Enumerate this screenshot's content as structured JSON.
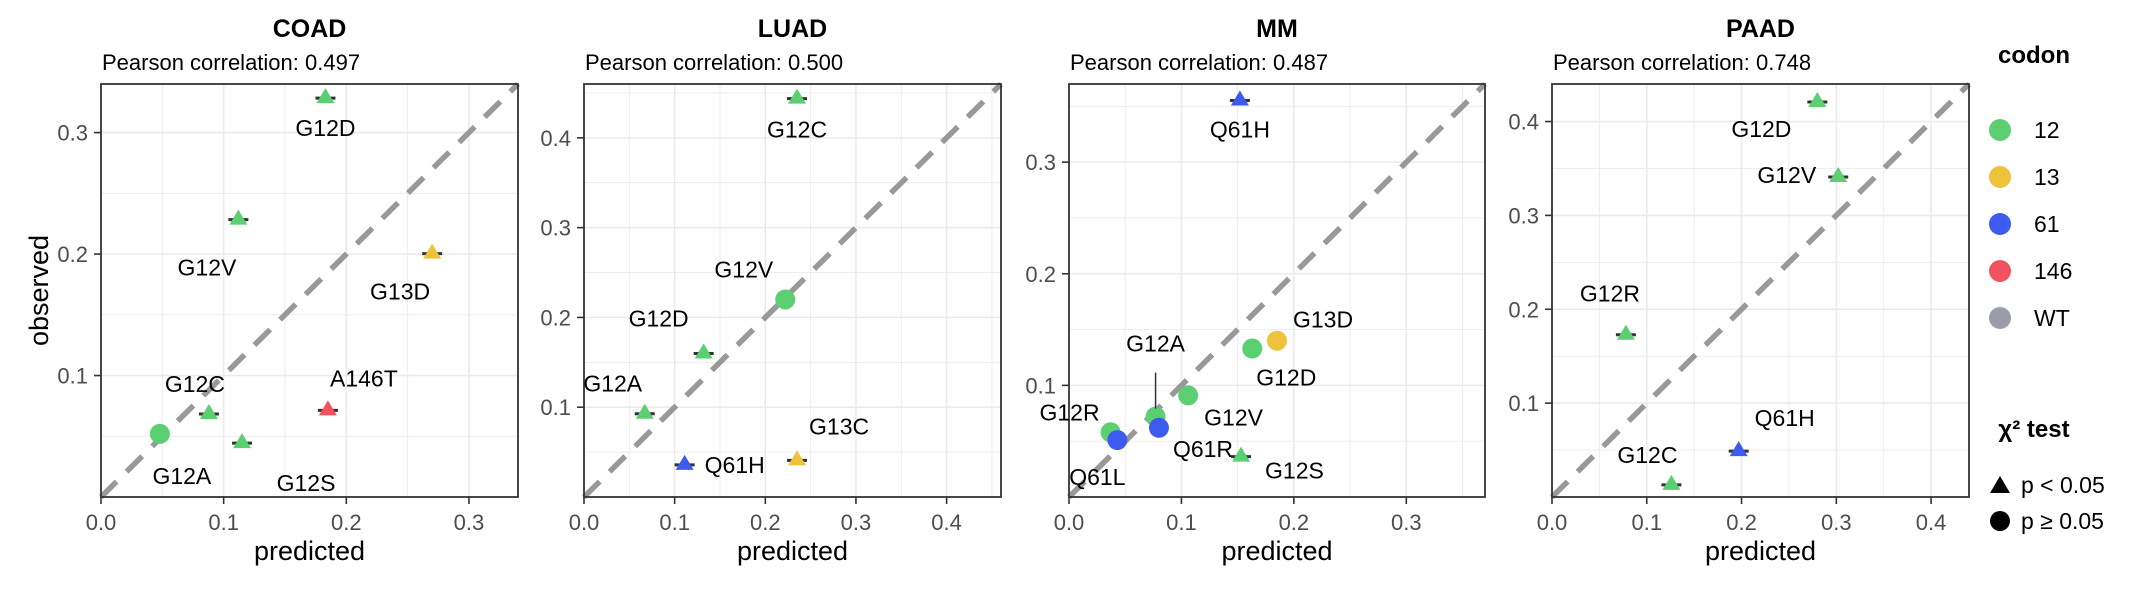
{
  "colors": {
    "12": "#5BCF72",
    "13": "#EEC23A",
    "61": "#3D5BEF",
    "146": "#F0525F",
    "WT": "#9A9CA8",
    "diagonal": "#999999",
    "panel_border": "#333333",
    "grid": "#EBEBEB"
  },
  "chart_data": [
    {
      "type": "scatter",
      "title": "COAD",
      "subtitle": "Pearson correlation: 0.497",
      "xlabel": "predicted",
      "ylabel": "observed",
      "xlim": [
        0,
        0.34
      ],
      "ylim": [
        0,
        0.34
      ],
      "xticks": [
        "0.0",
        "0.1",
        "0.2",
        "0.3"
      ],
      "yticks": [
        "0.1",
        "0.2",
        "0.3"
      ],
      "diagonal": "y = x dashed",
      "points": [
        {
          "label": "G12D",
          "x": 0.183,
          "y": 0.33,
          "codon": "12",
          "shape": "triangle"
        },
        {
          "label": "G12V",
          "x": 0.112,
          "y": 0.23,
          "codon": "12",
          "shape": "triangle"
        },
        {
          "label": "G13D",
          "x": 0.27,
          "y": 0.202,
          "codon": "13",
          "shape": "triangle"
        },
        {
          "label": "A146T",
          "x": 0.185,
          "y": 0.073,
          "codon": "146",
          "shape": "triangle"
        },
        {
          "label": "G12C",
          "x": 0.088,
          "y": 0.07,
          "codon": "12",
          "shape": "triangle"
        },
        {
          "label": "G12S",
          "x": 0.115,
          "y": 0.046,
          "codon": "12",
          "shape": "triangle"
        },
        {
          "label": "G12A",
          "x": 0.048,
          "y": 0.052,
          "codon": "12",
          "shape": "circle"
        }
      ]
    },
    {
      "type": "scatter",
      "title": "LUAD",
      "subtitle": "Pearson correlation: 0.500",
      "xlabel": "predicted",
      "ylabel": "",
      "xlim": [
        0,
        0.46
      ],
      "ylim": [
        0,
        0.46
      ],
      "xticks": [
        "0.0",
        "0.1",
        "0.2",
        "0.3",
        "0.4"
      ],
      "yticks": [
        "0.1",
        "0.2",
        "0.3",
        "0.4"
      ],
      "diagonal": "y = x dashed",
      "points": [
        {
          "label": "G12C",
          "x": 0.235,
          "y": 0.446,
          "codon": "12",
          "shape": "triangle"
        },
        {
          "label": "G12V",
          "x": 0.222,
          "y": 0.22,
          "codon": "12",
          "shape": "circle"
        },
        {
          "label": "G12D",
          "x": 0.132,
          "y": 0.162,
          "codon": "12",
          "shape": "triangle"
        },
        {
          "label": "G12A",
          "x": 0.067,
          "y": 0.095,
          "codon": "12",
          "shape": "triangle"
        },
        {
          "label": "G13C",
          "x": 0.235,
          "y": 0.043,
          "codon": "13",
          "shape": "triangle"
        },
        {
          "label": "Q61H",
          "x": 0.111,
          "y": 0.038,
          "codon": "61",
          "shape": "triangle"
        }
      ]
    },
    {
      "type": "scatter",
      "title": "MM",
      "subtitle": "Pearson correlation: 0.487",
      "xlabel": "predicted",
      "ylabel": "",
      "xlim": [
        0,
        0.37
      ],
      "ylim": [
        0,
        0.37
      ],
      "xticks": [
        "0.0",
        "0.1",
        "0.2",
        "0.3"
      ],
      "yticks": [
        "0.1",
        "0.2",
        "0.3"
      ],
      "diagonal": "y = x dashed",
      "points": [
        {
          "label": "Q61H",
          "x": 0.152,
          "y": 0.357,
          "codon": "61",
          "shape": "triangle"
        },
        {
          "label": "G13D",
          "x": 0.185,
          "y": 0.14,
          "codon": "13",
          "shape": "circle"
        },
        {
          "label": "G12D",
          "x": 0.163,
          "y": 0.133,
          "codon": "12",
          "shape": "circle"
        },
        {
          "label": "G12V",
          "x": 0.106,
          "y": 0.091,
          "codon": "12",
          "shape": "circle"
        },
        {
          "label": "G12A",
          "x": 0.077,
          "y": 0.072,
          "codon": "12",
          "shape": "circle"
        },
        {
          "label": "G12R",
          "x": 0.037,
          "y": 0.058,
          "codon": "12",
          "shape": "circle"
        },
        {
          "label": "Q61R",
          "x": 0.08,
          "y": 0.062,
          "codon": "61",
          "shape": "circle"
        },
        {
          "label": "Q61L",
          "x": 0.043,
          "y": 0.051,
          "codon": "61",
          "shape": "circle"
        },
        {
          "label": "G12S",
          "x": 0.153,
          "y": 0.038,
          "codon": "12",
          "shape": "triangle"
        }
      ]
    },
    {
      "type": "scatter",
      "title": "PAAD",
      "subtitle": "Pearson correlation: 0.748",
      "xlabel": "predicted",
      "ylabel": "",
      "xlim": [
        0,
        0.44
      ],
      "ylim": [
        0,
        0.44
      ],
      "xticks": [
        "0.0",
        "0.1",
        "0.2",
        "0.3",
        "0.4"
      ],
      "yticks": [
        "0.1",
        "0.2",
        "0.3",
        "0.4"
      ],
      "diagonal": "y = x dashed",
      "points": [
        {
          "label": "G12D",
          "x": 0.28,
          "y": 0.423,
          "codon": "12",
          "shape": "triangle"
        },
        {
          "label": "G12V",
          "x": 0.302,
          "y": 0.343,
          "codon": "12",
          "shape": "triangle"
        },
        {
          "label": "G12R",
          "x": 0.078,
          "y": 0.175,
          "codon": "12",
          "shape": "triangle"
        },
        {
          "label": "Q61H",
          "x": 0.197,
          "y": 0.051,
          "codon": "61",
          "shape": "triangle"
        },
        {
          "label": "G12C",
          "x": 0.126,
          "y": 0.015,
          "codon": "12",
          "shape": "triangle"
        }
      ]
    }
  ],
  "legend": {
    "codon_title": "codon",
    "codon_items": [
      {
        "label": "12",
        "color": "#5BCF72"
      },
      {
        "label": "13",
        "color": "#EEC23A"
      },
      {
        "label": "61",
        "color": "#3D5BEF"
      },
      {
        "label": "146",
        "color": "#F0525F"
      },
      {
        "label": "WT",
        "color": "#9A9CA8"
      }
    ],
    "test_title": "χ² test",
    "test_items": [
      {
        "label": "p < 0.05",
        "shape": "triangle"
      },
      {
        "label": "p ≥ 0.05",
        "shape": "circle"
      }
    ]
  }
}
